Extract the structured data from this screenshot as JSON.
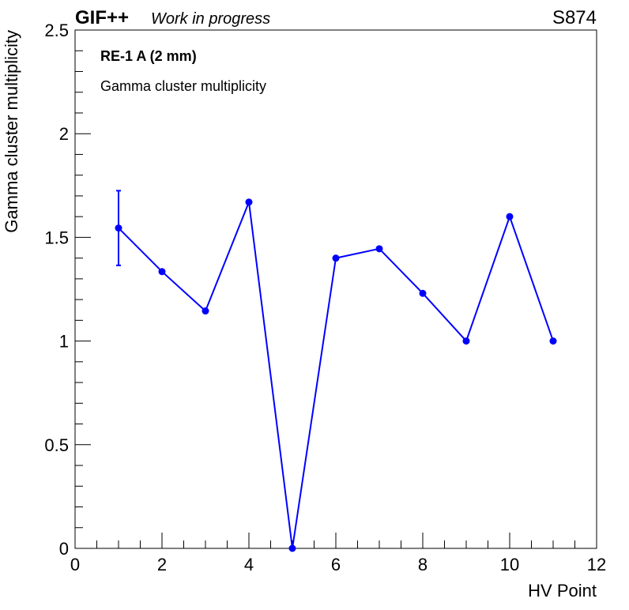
{
  "header": {
    "experiment": "GIF++",
    "status": "Work in progress",
    "run": "S874"
  },
  "chart_data": {
    "type": "scatter",
    "legend": {
      "title": "RE-1 A (2 mm)",
      "entry": "Gamma cluster multiplicity"
    },
    "xlabel": "HV Point",
    "ylabel": "Gamma cluster multiplicity",
    "xlim": [
      0,
      12
    ],
    "ylim": [
      0,
      2.5
    ],
    "xticks": [
      0,
      2,
      4,
      6,
      8,
      10,
      12
    ],
    "yticks": [
      0,
      0.5,
      1,
      1.5,
      2,
      2.5
    ],
    "x_tick_labels": [
      "0",
      "2",
      "4",
      "6",
      "8",
      "10",
      "12"
    ],
    "y_tick_labels": [
      "0",
      "0.5",
      "1",
      "1.5",
      "2",
      "2.5"
    ],
    "series": [
      {
        "color": "#0000ff",
        "x": [
          1,
          2,
          3,
          4,
          5,
          6,
          7,
          8,
          9,
          10,
          11
        ],
        "y": [
          1.545,
          1.335,
          1.145,
          1.67,
          0.0,
          1.4,
          1.445,
          1.23,
          1.0,
          1.6,
          1.0
        ],
        "yerr": [
          0.18,
          0,
          0,
          0,
          0,
          0,
          0,
          0,
          0,
          0,
          0
        ]
      }
    ],
    "grid": false
  }
}
